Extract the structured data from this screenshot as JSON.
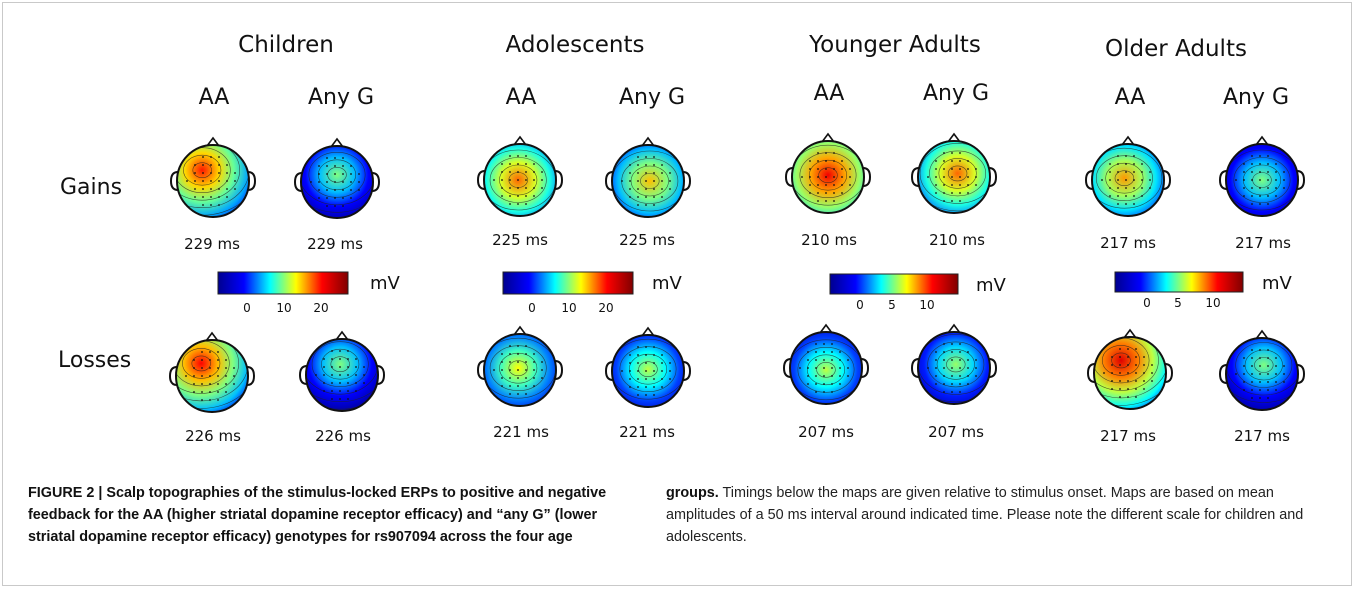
{
  "figure": {
    "groups": [
      {
        "name": "Children",
        "genotypes": [
          "AA",
          "Any G"
        ],
        "scale": {
          "ticks": [
            "0",
            "10",
            "20"
          ],
          "unit": "mV",
          "min": -10,
          "max": 25
        },
        "gains": [
          {
            "label": "229 ms",
            "peak": 0.78,
            "focus": [
              -0.3,
              -0.3
            ]
          },
          {
            "label": "229 ms",
            "peak": 0.5,
            "focus": [
              0.0,
              -0.2
            ]
          }
        ],
        "losses": [
          {
            "label": "226 ms",
            "peak": 0.8,
            "focus": [
              -0.3,
              -0.35
            ]
          },
          {
            "label": "226 ms",
            "peak": 0.5,
            "focus": [
              -0.05,
              -0.3
            ]
          }
        ]
      },
      {
        "name": "Adolescents",
        "genotypes": [
          "AA",
          "Any G"
        ],
        "scale": {
          "ticks": [
            "0",
            "10",
            "20"
          ],
          "unit": "mV",
          "min": -10,
          "max": 25
        },
        "gains": [
          {
            "label": "225 ms",
            "peak": 0.72,
            "focus": [
              -0.05,
              0.0
            ]
          },
          {
            "label": "225 ms",
            "peak": 0.65,
            "focus": [
              0.05,
              0.0
            ]
          }
        ],
        "losses": [
          {
            "label": "221 ms",
            "peak": 0.6,
            "focus": [
              -0.05,
              -0.05
            ]
          },
          {
            "label": "221 ms",
            "peak": 0.55,
            "focus": [
              0.0,
              -0.05
            ]
          }
        ]
      },
      {
        "name": "Younger Adults",
        "genotypes": [
          "AA",
          "Any G"
        ],
        "scale": {
          "ticks": [
            "0",
            "5",
            "10"
          ],
          "unit": "mV",
          "min": -5,
          "max": 13
        },
        "gains": [
          {
            "label": "210 ms",
            "peak": 0.82,
            "focus": [
              0.0,
              -0.05
            ]
          },
          {
            "label": "210 ms",
            "peak": 0.72,
            "focus": [
              0.1,
              -0.1
            ]
          }
        ],
        "losses": [
          {
            "label": "207 ms",
            "peak": 0.55,
            "focus": [
              0.0,
              0.05
            ]
          },
          {
            "label": "207 ms",
            "peak": 0.52,
            "focus": [
              0.05,
              -0.1
            ]
          }
        ]
      },
      {
        "name": "Older Adults",
        "genotypes": [
          "AA",
          "Any G"
        ],
        "scale": {
          "ticks": [
            "0",
            "5",
            "10"
          ],
          "unit": "mV",
          "min": -5,
          "max": 13
        },
        "gains": [
          {
            "label": "217 ms",
            "peak": 0.68,
            "focus": [
              -0.1,
              -0.05
            ]
          },
          {
            "label": "217 ms",
            "peak": 0.5,
            "focus": [
              0.0,
              0.0
            ]
          }
        ],
        "losses": [
          {
            "label": "217 ms",
            "peak": 0.85,
            "focus": [
              -0.25,
              -0.35
            ]
          },
          {
            "label": "217 ms",
            "peak": 0.5,
            "focus": [
              0.05,
              -0.25
            ]
          }
        ]
      }
    ],
    "rows": [
      "Gains",
      "Losses"
    ],
    "colormap": [
      "#00008f",
      "#0000ff",
      "#00ffff",
      "#ffff00",
      "#ff0000",
      "#800000"
    ]
  },
  "caption": {
    "label": "FIGURE 2 | Scalp topographies of the stimulus-locked ERPs to positive and negative feedback for the AA (higher striatal dopamine receptor efficacy) and “any G” (lower striatal dopamine receptor efficacy) genotypes for rs907094 across the four age",
    "label_end": "groups.",
    "text": " Timings below the maps are given relative to stimulus onset. Maps are based on mean amplitudes of a 50 ms interval around indicated time. Please note the different scale for children and adolescents."
  }
}
